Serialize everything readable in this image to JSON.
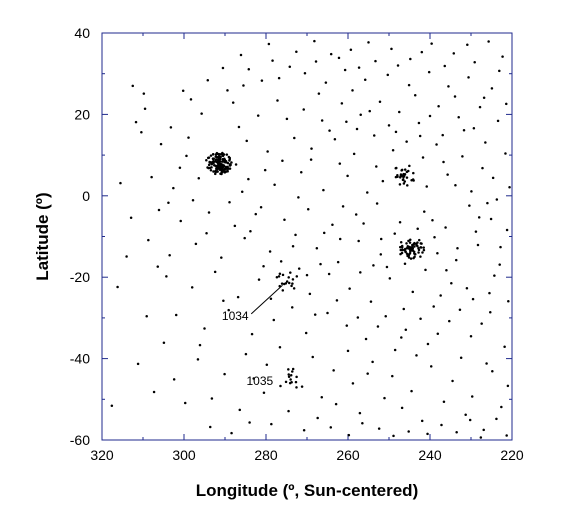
{
  "chart_data": {
    "type": "scatter",
    "title": "",
    "xlabel": "Longitude (º, Sun-centered)",
    "ylabel": "Latitude (º)",
    "xlim": [
      320,
      220
    ],
    "ylim": [
      -60,
      40
    ],
    "x_reversed": true,
    "xticks": [
      "320",
      "300",
      "280",
      "260",
      "240",
      "220"
    ],
    "yticks": [
      "40",
      "20",
      "0",
      "-20",
      "-40",
      "-60"
    ],
    "grid": false,
    "legend": "none",
    "colors": {
      "points": "#000000",
      "frame": "#1f2a8c",
      "text": "#000000"
    },
    "clusters": [
      {
        "x": 291.5,
        "y": 8.0,
        "count": 150
      },
      {
        "x": 244.5,
        "y": -13.0,
        "count": 70
      },
      {
        "x": 246.5,
        "y": 5.0,
        "count": 35
      },
      {
        "x": 275.0,
        "y": -21.0,
        "count": 18
      },
      {
        "x": 274.0,
        "y": -45.0,
        "count": 14
      }
    ],
    "annotations": [
      {
        "label": "1034",
        "x": 275.0,
        "y": -21.5,
        "text_x": 287.5,
        "text_y": -29.5
      },
      {
        "label": "1035",
        "x": 274.0,
        "y": -45.0,
        "text_x": 281.5,
        "text_y": -45.5
      }
    ],
    "points": [
      [
        312.5,
        27.0
      ],
      [
        309.8,
        25.1
      ],
      [
        300.2,
        25.8
      ],
      [
        298.3,
        23.7
      ],
      [
        290.5,
        31.4
      ],
      [
        286.1,
        34.6
      ],
      [
        284.2,
        31.1
      ],
      [
        281.0,
        28.3
      ],
      [
        278.4,
        33.2
      ],
      [
        272.6,
        35.4
      ],
      [
        268.2,
        38.0
      ],
      [
        264.1,
        34.8
      ],
      [
        259.3,
        35.9
      ],
      [
        255.0,
        37.7
      ],
      [
        249.4,
        36.1
      ],
      [
        244.8,
        33.6
      ],
      [
        239.6,
        37.4
      ],
      [
        234.2,
        35.0
      ],
      [
        229.1,
        32.8
      ],
      [
        225.7,
        37.9
      ],
      [
        222.3,
        34.2
      ],
      [
        276.8,
        28.9
      ],
      [
        270.5,
        30.1
      ],
      [
        265.4,
        27.8
      ],
      [
        260.7,
        30.9
      ],
      [
        255.8,
        28.5
      ],
      [
        250.3,
        29.7
      ],
      [
        245.1,
        27.2
      ],
      [
        240.2,
        30.4
      ],
      [
        235.5,
        26.9
      ],
      [
        230.6,
        29.1
      ],
      [
        224.9,
        26.4
      ],
      [
        309.5,
        21.4
      ],
      [
        311.7,
        18.1
      ],
      [
        310.4,
        15.6
      ],
      [
        303.2,
        16.8
      ],
      [
        295.7,
        20.2
      ],
      [
        288.0,
        22.9
      ],
      [
        281.9,
        19.7
      ],
      [
        277.2,
        23.4
      ],
      [
        270.8,
        21.2
      ],
      [
        266.3,
        18.5
      ],
      [
        261.5,
        22.7
      ],
      [
        256.9,
        19.9
      ],
      [
        252.2,
        23.1
      ],
      [
        247.5,
        20.6
      ],
      [
        242.7,
        17.9
      ],
      [
        237.9,
        22.0
      ],
      [
        233.0,
        19.3
      ],
      [
        227.8,
        21.8
      ],
      [
        223.4,
        18.4
      ],
      [
        305.6,
        12.7
      ],
      [
        299.4,
        9.8
      ],
      [
        284.7,
        13.5
      ],
      [
        279.6,
        10.9
      ],
      [
        273.1,
        14.2
      ],
      [
        268.9,
        11.6
      ],
      [
        263.2,
        13.9
      ],
      [
        258.5,
        10.3
      ],
      [
        253.6,
        14.8
      ],
      [
        249.0,
        11.2
      ],
      [
        238.4,
        12.6
      ],
      [
        232.1,
        9.7
      ],
      [
        226.5,
        13.1
      ],
      [
        221.6,
        10.4
      ],
      [
        307.9,
        4.6
      ],
      [
        302.6,
        1.9
      ],
      [
        284.3,
        4.1
      ],
      [
        277.9,
        2.7
      ],
      [
        271.4,
        5.8
      ],
      [
        266.0,
        1.4
      ],
      [
        260.1,
        4.9
      ],
      [
        255.3,
        0.8
      ],
      [
        251.5,
        3.6
      ],
      [
        240.8,
        2.3
      ],
      [
        235.7,
        5.2
      ],
      [
        229.9,
        1.1
      ],
      [
        224.6,
        4.4
      ],
      [
        306.1,
        -3.5
      ],
      [
        300.8,
        -6.2
      ],
      [
        293.9,
        -4.1
      ],
      [
        287.6,
        -7.4
      ],
      [
        281.2,
        -2.8
      ],
      [
        275.5,
        -5.9
      ],
      [
        269.7,
        -3.3
      ],
      [
        263.8,
        -7.1
      ],
      [
        258.0,
        -4.6
      ],
      [
        252.9,
        -1.9
      ],
      [
        247.3,
        -6.5
      ],
      [
        241.4,
        -3.9
      ],
      [
        236.2,
        -7.8
      ],
      [
        230.4,
        -2.4
      ],
      [
        225.1,
        -5.7
      ],
      [
        221.2,
        -8.4
      ],
      [
        308.7,
        -10.9
      ],
      [
        303.5,
        -14.6
      ],
      [
        297.1,
        -11.8
      ],
      [
        290.9,
        -15.2
      ],
      [
        285.2,
        -10.4
      ],
      [
        279.0,
        -13.7
      ],
      [
        272.8,
        -9.6
      ],
      [
        267.6,
        -12.9
      ],
      [
        262.4,
        -16.3
      ],
      [
        257.4,
        -11.1
      ],
      [
        252.0,
        -14.4
      ],
      [
        238.9,
        -10.2
      ],
      [
        233.6,
        -15.8
      ],
      [
        228.3,
        -12.1
      ],
      [
        223.0,
        -16.9
      ],
      [
        304.3,
        -19.8
      ],
      [
        298.0,
        -22.5
      ],
      [
        292.4,
        -18.7
      ],
      [
        286.8,
        -24.9
      ],
      [
        281.7,
        -20.6
      ],
      [
        269.3,
        -24.1
      ],
      [
        264.6,
        -19.2
      ],
      [
        259.6,
        -22.8
      ],
      [
        254.4,
        -26.0
      ],
      [
        249.8,
        -20.3
      ],
      [
        244.2,
        -23.6
      ],
      [
        239.1,
        -27.2
      ],
      [
        234.8,
        -21.5
      ],
      [
        229.5,
        -25.4
      ],
      [
        224.3,
        -19.6
      ],
      [
        301.9,
        -29.3
      ],
      [
        295.0,
        -32.6
      ],
      [
        289.1,
        -28.1
      ],
      [
        283.4,
        -34.0
      ],
      [
        278.1,
        -30.5
      ],
      [
        270.2,
        -33.7
      ],
      [
        265.0,
        -28.8
      ],
      [
        260.3,
        -31.9
      ],
      [
        255.6,
        -35.2
      ],
      [
        250.8,
        -29.6
      ],
      [
        245.9,
        -32.9
      ],
      [
        240.5,
        -36.4
      ],
      [
        235.3,
        -30.8
      ],
      [
        230.0,
        -34.5
      ],
      [
        225.3,
        -28.6
      ],
      [
        221.8,
        -37.1
      ],
      [
        296.6,
        -40.2
      ],
      [
        290.1,
        -43.8
      ],
      [
        284.9,
        -38.9
      ],
      [
        279.8,
        -41.5
      ],
      [
        268.6,
        -39.6
      ],
      [
        263.5,
        -42.9
      ],
      [
        258.8,
        -46.1
      ],
      [
        254.0,
        -40.8
      ],
      [
        249.2,
        -44.3
      ],
      [
        244.5,
        -48.0
      ],
      [
        239.7,
        -41.9
      ],
      [
        234.5,
        -45.5
      ],
      [
        229.7,
        -49.3
      ],
      [
        224.8,
        -43.1
      ],
      [
        221.0,
        -46.7
      ],
      [
        293.2,
        -49.8
      ],
      [
        286.4,
        -52.6
      ],
      [
        280.5,
        -48.4
      ],
      [
        262.9,
        -51.2
      ],
      [
        257.1,
        -53.4
      ],
      [
        251.1,
        -49.7
      ],
      [
        246.8,
        -52.1
      ],
      [
        241.9,
        -55.3
      ],
      [
        236.6,
        -50.6
      ],
      [
        231.3,
        -53.8
      ],
      [
        226.9,
        -57.5
      ],
      [
        222.6,
        -51.9
      ],
      [
        302.4,
        -45.1
      ],
      [
        296.1,
        -36.7
      ],
      [
        290.4,
        -25.8
      ],
      [
        262.0,
        7.9
      ],
      [
        257.8,
        16.4
      ],
      [
        253.1,
        7.2
      ],
      [
        243.6,
        24.7
      ],
      [
        231.7,
        16.1
      ],
      [
        227.2,
        6.8
      ],
      [
        286.6,
        16.9
      ],
      [
        280.2,
        6.3
      ],
      [
        274.9,
        18.9
      ],
      [
        267.1,
        25.1
      ],
      [
        258.9,
        25.9
      ],
      [
        248.3,
        15.7
      ],
      [
        236.9,
        14.9
      ],
      [
        233.8,
        2.6
      ],
      [
        228.8,
        -8.8
      ],
      [
        223.7,
        -0.9
      ],
      [
        246.1,
        -16.7
      ],
      [
        248.6,
        -9.3
      ],
      [
        243.0,
        -8.1
      ],
      [
        241.1,
        -18.2
      ],
      [
        238.2,
        -14.1
      ],
      [
        250.5,
        -17.5
      ],
      [
        256.2,
        -6.8
      ],
      [
        261.9,
        -10.6
      ],
      [
        266.7,
        -16.8
      ],
      [
        271.9,
        -17.9
      ],
      [
        276.3,
        -16.1
      ],
      [
        280.6,
        -17.3
      ],
      [
        273.6,
        -27.4
      ],
      [
        268.0,
        -29.2
      ],
      [
        262.7,
        -25.7
      ],
      [
        257.0,
        -18.8
      ],
      [
        252.7,
        -32.1
      ],
      [
        246.4,
        -27.8
      ],
      [
        242.3,
        -30.2
      ],
      [
        237.4,
        -24.5
      ],
      [
        232.7,
        -28.0
      ],
      [
        227.4,
        -31.4
      ],
      [
        283.0,
        -44.9
      ],
      [
        276.6,
        -37.2
      ],
      [
        271.2,
        -46.9
      ],
      [
        266.4,
        -49.5
      ],
      [
        260.0,
        -38.1
      ],
      [
        255.2,
        -43.7
      ],
      [
        248.5,
        -37.9
      ],
      [
        243.3,
        -39.2
      ],
      [
        238.1,
        -33.9
      ],
      [
        232.4,
        -39.8
      ],
      [
        226.2,
        -41.2
      ],
      [
        309.1,
        -29.6
      ],
      [
        306.4,
        -17.4
      ],
      [
        303.8,
        -1.7
      ],
      [
        301.0,
        6.9
      ],
      [
        297.8,
        -1.1
      ],
      [
        294.5,
        -9.2
      ],
      [
        288.9,
        -1.6
      ],
      [
        283.8,
        -8.7
      ],
      [
        278.8,
        -25.3
      ],
      [
        273.4,
        -12.4
      ],
      [
        270.0,
        -19.5
      ],
      [
        265.8,
        -9.1
      ],
      [
        261.2,
        -2.6
      ],
      [
        257.6,
        -29.9
      ],
      [
        253.8,
        -17.1
      ],
      [
        251.9,
        -10.6
      ],
      [
        247.0,
        -34.8
      ],
      [
        241.7,
        9.4
      ],
      [
        239.4,
        -6.0
      ],
      [
        236.0,
        -18.3
      ],
      [
        233.3,
        -12.9
      ],
      [
        231.0,
        -22.7
      ],
      [
        228.0,
        -5.3
      ],
      [
        225.5,
        -23.9
      ],
      [
        222.8,
        -12.6
      ],
      [
        220.6,
        2.1
      ],
      [
        220.9,
        -25.9
      ],
      [
        221.4,
        22.6
      ],
      [
        223.1,
        30.7
      ],
      [
        226.8,
        24.1
      ],
      [
        230.9,
        37.1
      ],
      [
        236.4,
        31.9
      ],
      [
        242.0,
        35.3
      ],
      [
        247.8,
        32.0
      ],
      [
        253.3,
        33.1
      ],
      [
        257.3,
        31.5
      ],
      [
        262.2,
        33.9
      ],
      [
        267.8,
        33.0
      ],
      [
        274.2,
        31.7
      ],
      [
        279.3,
        37.3
      ],
      [
        285.5,
        27.1
      ],
      [
        289.4,
        25.9
      ],
      [
        294.2,
        28.4
      ],
      [
        298.9,
        14.3
      ],
      [
        296.4,
        4.3
      ],
      [
        287.3,
        7.7
      ],
      [
        285.8,
        1.0
      ],
      [
        282.5,
        -4.5
      ],
      [
        276.0,
        8.6
      ],
      [
        272.1,
        -0.4
      ],
      [
        269.0,
        8.9
      ],
      [
        264.5,
        16.0
      ],
      [
        260.4,
        18.2
      ],
      [
        254.7,
        20.8
      ],
      [
        250.0,
        17.3
      ],
      [
        245.7,
        13.3
      ],
      [
        242.4,
        14.7
      ],
      [
        240.0,
        19.6
      ],
      [
        236.7,
        8.3
      ],
      [
        233.9,
        24.4
      ],
      [
        229.3,
        16.6
      ],
      [
        226.0,
        -1.8
      ],
      [
        312.9,
        -5.4
      ],
      [
        314.0,
        -14.9
      ],
      [
        315.5,
        3.1
      ],
      [
        316.2,
        -22.4
      ],
      [
        317.6,
        -51.6
      ],
      [
        311.2,
        -41.3
      ],
      [
        307.3,
        -48.2
      ],
      [
        304.9,
        -36.1
      ],
      [
        299.7,
        -50.9
      ],
      [
        293.6,
        -56.8
      ],
      [
        288.4,
        -58.3
      ],
      [
        284.0,
        -55.7
      ],
      [
        278.7,
        -56.1
      ],
      [
        274.5,
        -52.9
      ],
      [
        270.7,
        -57.6
      ],
      [
        267.4,
        -54.6
      ],
      [
        264.2,
        -56.9
      ],
      [
        259.8,
        -58.8
      ],
      [
        256.5,
        -55.9
      ],
      [
        252.4,
        -57.2
      ],
      [
        248.9,
        -59.0
      ],
      [
        245.2,
        -57.9
      ],
      [
        240.6,
        -58.5
      ],
      [
        237.2,
        -56.3
      ],
      [
        233.5,
        -58.1
      ],
      [
        230.2,
        -55.1
      ],
      [
        227.6,
        -59.4
      ],
      [
        223.8,
        -54.8
      ],
      [
        221.3,
        -58.9
      ]
    ]
  }
}
